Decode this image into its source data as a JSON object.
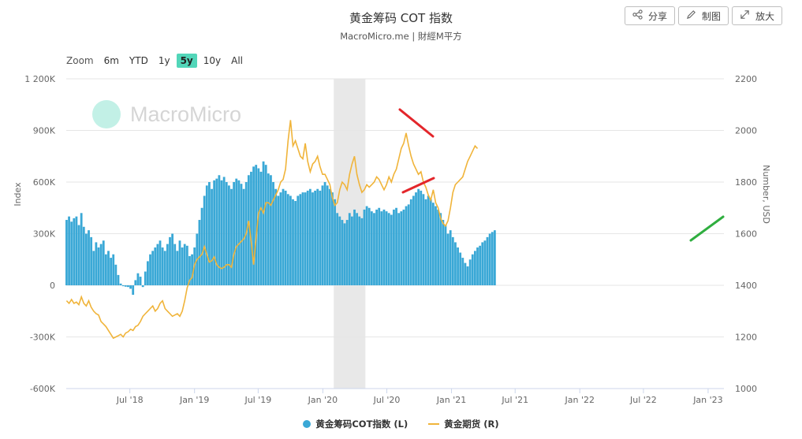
{
  "header": {
    "title": "黄金筹码 COT 指数",
    "subtitle": "MacroMicro.me | 財經M平方"
  },
  "toolbar": {
    "share_label": "分享",
    "draw_label": "制图",
    "expand_label": "放大"
  },
  "zoom": {
    "label": "Zoom",
    "options": [
      "6m",
      "YTD",
      "1y",
      "5y",
      "10y",
      "All"
    ],
    "active": "5y"
  },
  "watermark": {
    "text": "MacroMicro"
  },
  "colors": {
    "bar": "#3aa8d6",
    "line": "#f0b43a",
    "recession": "#e8e8e8",
    "active_zoom": "#52d6b9"
  },
  "chart_data": {
    "type": "bar",
    "x_tick_labels": [
      "Jul '18",
      "Jan '19",
      "Jul '19",
      "Jan '20",
      "Jul '20",
      "Jan '21",
      "Jul '21",
      "Jan '22",
      "Jul '22",
      "Jan '23"
    ],
    "y_left": {
      "label": "Index",
      "ticks": [
        "1 200K",
        "900K",
        "600K",
        "300K",
        "0",
        "-300K",
        "-600K"
      ],
      "range": [
        -600000,
        1200000
      ]
    },
    "y_right": {
      "label": "Number, USD",
      "ticks": [
        "2200",
        "2000",
        "1800",
        "1600",
        "1400",
        "1200",
        "1000"
      ],
      "range": [
        1000,
        2200
      ]
    },
    "shaded_period": {
      "start": "2020-02",
      "end": "2020-05"
    },
    "series": [
      {
        "name": "黄金筹码COT指数 (L)",
        "type": "bar",
        "x_start": "2018-01-02",
        "interval": "weekly",
        "values": [
          380000,
          400000,
          370000,
          390000,
          400000,
          350000,
          420000,
          340000,
          300000,
          320000,
          280000,
          200000,
          250000,
          220000,
          240000,
          260000,
          180000,
          200000,
          160000,
          180000,
          120000,
          60000,
          10000,
          -5000,
          -8000,
          -10000,
          -20000,
          -55000,
          30000,
          70000,
          50000,
          -10000,
          80000,
          140000,
          180000,
          200000,
          220000,
          240000,
          260000,
          220000,
          200000,
          240000,
          280000,
          300000,
          240000,
          200000,
          260000,
          220000,
          240000,
          230000,
          170000,
          180000,
          220000,
          300000,
          380000,
          450000,
          520000,
          580000,
          600000,
          560000,
          610000,
          620000,
          640000,
          610000,
          630000,
          600000,
          580000,
          560000,
          600000,
          620000,
          610000,
          590000,
          560000,
          600000,
          640000,
          660000,
          690000,
          700000,
          680000,
          660000,
          720000,
          700000,
          650000,
          640000,
          600000,
          560000,
          520000,
          540000,
          560000,
          550000,
          530000,
          520000,
          500000,
          490000,
          520000,
          530000,
          540000,
          540000,
          550000,
          560000,
          540000,
          550000,
          560000,
          550000,
          580000,
          600000,
          580000,
          560000,
          540000,
          500000,
          420000,
          400000,
          380000,
          360000,
          380000,
          420000,
          400000,
          440000,
          420000,
          400000,
          390000,
          440000,
          460000,
          450000,
          430000,
          420000,
          440000,
          450000,
          430000,
          440000,
          430000,
          420000,
          410000,
          440000,
          450000,
          420000,
          430000,
          440000,
          460000,
          470000,
          500000,
          520000,
          540000,
          560000,
          550000,
          530000,
          500000,
          520000,
          500000,
          480000,
          460000,
          440000,
          420000,
          380000,
          350000,
          300000,
          320000,
          280000,
          250000,
          220000,
          190000,
          160000,
          130000,
          110000,
          150000,
          180000,
          200000,
          220000,
          230000,
          250000,
          260000,
          280000,
          300000,
          310000,
          320000
        ]
      },
      {
        "name": "黄金期货 (R)",
        "type": "line",
        "x_start": "2018-01-02",
        "interval": "weekly",
        "values": [
          1340,
          1330,
          1345,
          1330,
          1335,
          1325,
          1355,
          1330,
          1320,
          1340,
          1315,
          1300,
          1290,
          1285,
          1260,
          1250,
          1240,
          1225,
          1210,
          1195,
          1200,
          1205,
          1210,
          1200,
          1215,
          1220,
          1230,
          1225,
          1240,
          1245,
          1260,
          1280,
          1290,
          1300,
          1310,
          1320,
          1300,
          1310,
          1330,
          1340,
          1310,
          1300,
          1290,
          1280,
          1285,
          1290,
          1280,
          1300,
          1340,
          1390,
          1420,
          1430,
          1480,
          1500,
          1510,
          1520,
          1550,
          1520,
          1490,
          1495,
          1510,
          1480,
          1470,
          1465,
          1470,
          1480,
          1480,
          1470,
          1520,
          1550,
          1560,
          1570,
          1580,
          1600,
          1650,
          1570,
          1480,
          1580,
          1680,
          1700,
          1680,
          1720,
          1720,
          1710,
          1730,
          1750,
          1770,
          1800,
          1810,
          1850,
          1960,
          2040,
          1940,
          1960,
          1930,
          1900,
          1890,
          1950,
          1880,
          1840,
          1870,
          1880,
          1900,
          1860,
          1830,
          1830,
          1810,
          1790,
          1740,
          1710,
          1720,
          1770,
          1800,
          1790,
          1770,
          1830,
          1870,
          1900,
          1830,
          1790,
          1760,
          1770,
          1790,
          1780,
          1790,
          1800,
          1820,
          1810,
          1790,
          1770,
          1790,
          1820,
          1800,
          1830,
          1850,
          1890,
          1930,
          1950,
          1990,
          1940,
          1900,
          1870,
          1850,
          1830,
          1840,
          1800,
          1780,
          1750,
          1730,
          1770,
          1720,
          1700,
          1660,
          1640,
          1630,
          1650,
          1700,
          1760,
          1790,
          1800,
          1810,
          1820,
          1850,
          1880,
          1900,
          1920,
          1940,
          1930
        ]
      }
    ]
  },
  "legend": {
    "bar_label": "黄金筹码COT指数 (L)",
    "line_label": "黄金期货 (R)"
  }
}
